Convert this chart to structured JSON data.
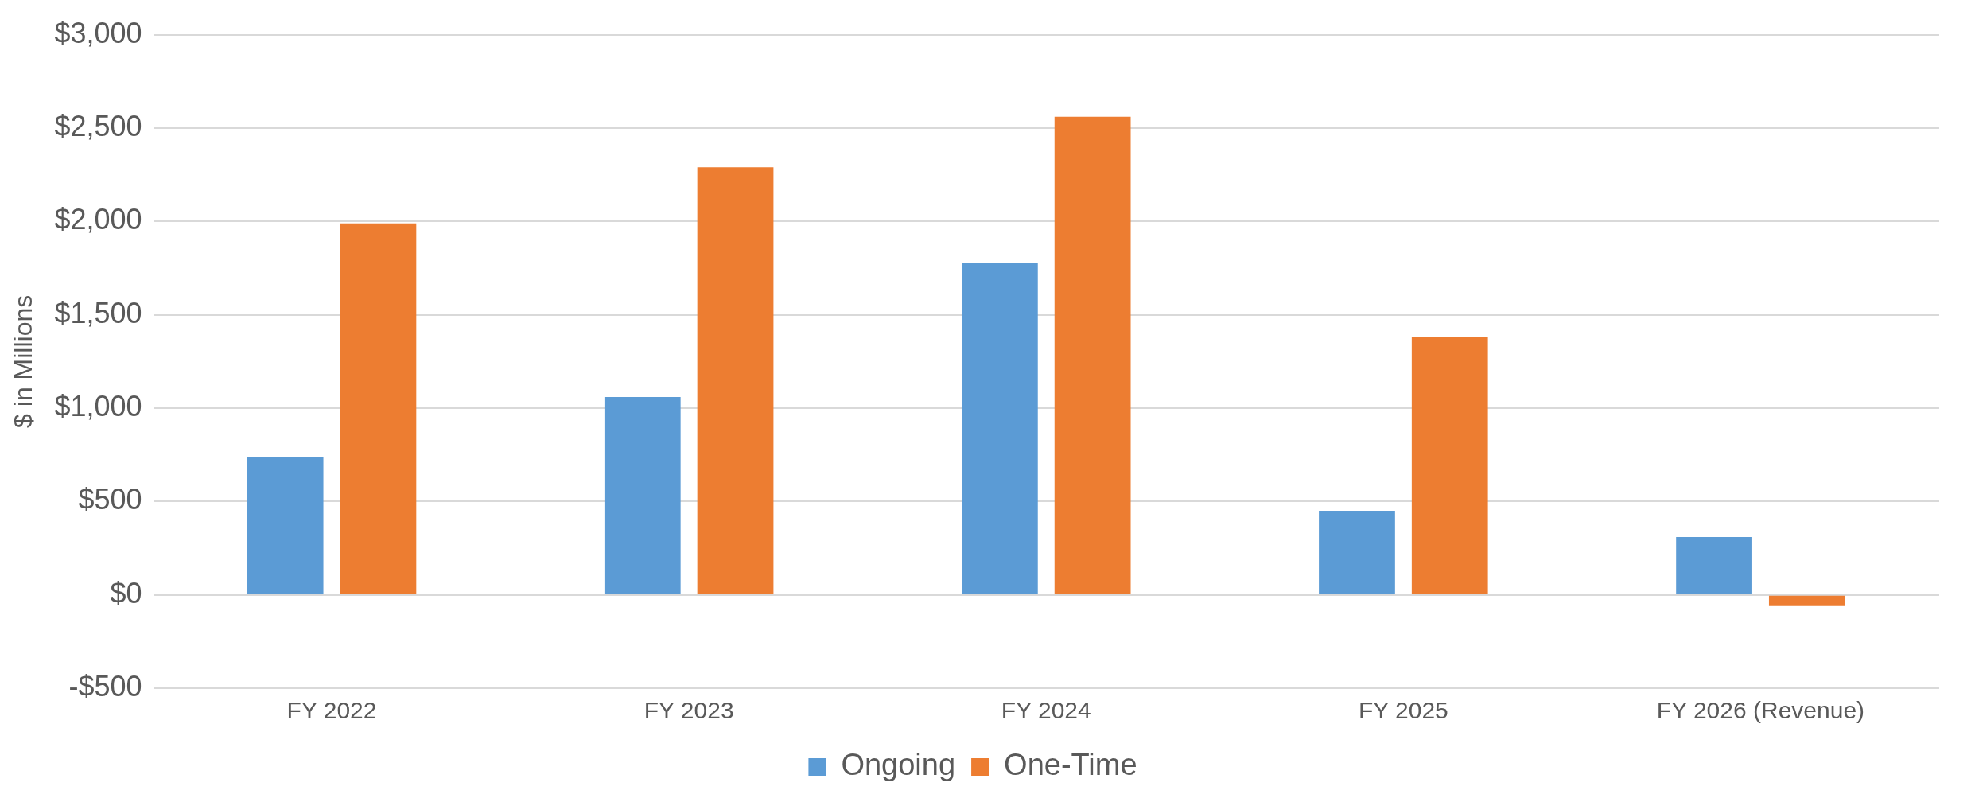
{
  "chart_data": {
    "type": "bar",
    "ylabel": "$ in Millions",
    "categories": [
      "FY 2022",
      "FY 2023",
      "FY 2024",
      "FY 2025",
      "FY 2026 (Revenue)"
    ],
    "series": [
      {
        "name": "Ongoing",
        "color": "#5b9bd5",
        "values": [
          740,
          1060,
          1780,
          450,
          310
        ]
      },
      {
        "name": "One-Time",
        "color": "#ed7d31",
        "values": [
          1990,
          2290,
          2560,
          1380,
          -60
        ]
      }
    ],
    "ylim": [
      -500,
      3000
    ],
    "yticks": [
      {
        "value": -500,
        "label": "-$500"
      },
      {
        "value": 0,
        "label": "$0"
      },
      {
        "value": 500,
        "label": "$500"
      },
      {
        "value": 1000,
        "label": "$1,000"
      },
      {
        "value": 1500,
        "label": "$1,500"
      },
      {
        "value": 2000,
        "label": "$2,000"
      },
      {
        "value": 2500,
        "label": "$2,500"
      },
      {
        "value": 3000,
        "label": "$3,000"
      }
    ],
    "grid": "y",
    "legend": "bottom"
  }
}
